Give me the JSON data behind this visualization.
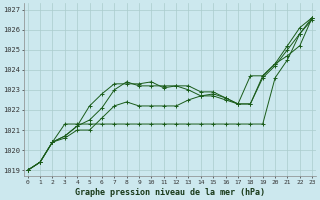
{
  "xlabel": "Graphe pression niveau de la mer (hPa)",
  "bg_color": "#cce8ee",
  "grid_color": "#aacccc",
  "line_color": "#1a5c1a",
  "ylim": [
    1018.7,
    1027.3
  ],
  "xlim": [
    -0.3,
    23.3
  ],
  "xticks": [
    0,
    1,
    2,
    3,
    4,
    5,
    6,
    7,
    8,
    9,
    10,
    11,
    12,
    13,
    14,
    15,
    16,
    17,
    18,
    19,
    20,
    21,
    22,
    23
  ],
  "yticks": [
    1019,
    1020,
    1021,
    1022,
    1023,
    1024,
    1025,
    1026,
    1027
  ],
  "series": [
    [
      1019.0,
      1019.4,
      1020.4,
      1020.6,
      1021.0,
      1021.0,
      1021.6,
      1022.2,
      1022.4,
      1022.2,
      1022.2,
      1022.2,
      1022.2,
      1022.5,
      1022.7,
      1022.7,
      1022.5,
      1022.3,
      1022.3,
      1023.6,
      1024.2,
      1025.0,
      1025.8,
      1026.5
    ],
    [
      1019.0,
      1019.4,
      1020.4,
      1020.7,
      1021.2,
      1021.5,
      1022.1,
      1023.0,
      1023.4,
      1023.2,
      1023.2,
      1023.2,
      1023.2,
      1023.0,
      1022.7,
      1022.8,
      1022.6,
      1022.3,
      1023.7,
      1023.7,
      1024.3,
      1024.7,
      1025.2,
      1026.6
    ],
    [
      1019.0,
      1019.4,
      1020.4,
      1020.7,
      1021.2,
      1022.2,
      1022.8,
      1023.3,
      1023.3,
      1023.3,
      1023.4,
      1023.1,
      1023.2,
      1023.2,
      1022.9,
      1022.9,
      1022.6,
      1022.3,
      1022.3,
      1023.7,
      1024.3,
      1025.2,
      1026.1,
      1026.6
    ],
    [
      1019.0,
      1019.4,
      1020.4,
      1021.3,
      1021.3,
      1021.3,
      1021.3,
      1021.3,
      1021.3,
      1021.3,
      1021.3,
      1021.3,
      1021.3,
      1021.3,
      1021.3,
      1021.3,
      1021.3,
      1021.3,
      1021.3,
      1021.3,
      1023.6,
      1024.5,
      1025.8,
      1026.6
    ]
  ]
}
